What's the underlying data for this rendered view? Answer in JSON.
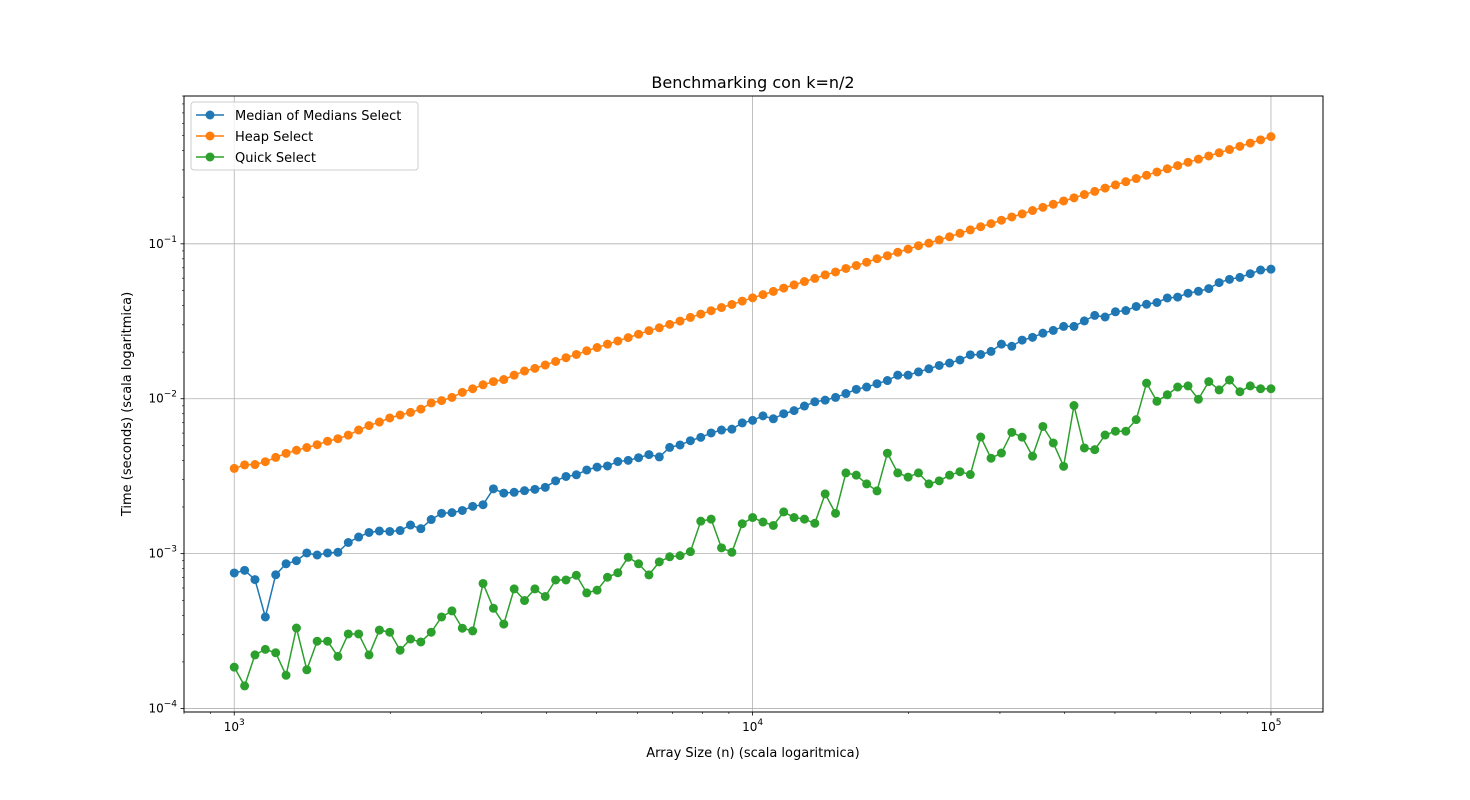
{
  "chart_data": {
    "type": "line",
    "title": "Benchmarking con k=n/2",
    "xlabel": "Array Size (n) (scala logaritmica)",
    "ylabel": "Time (seconds) (scala logaritmica)",
    "xscale": "log",
    "yscale": "log",
    "xlim": [
      800,
      126000
    ],
    "ylim": [
      9.5e-05,
      0.9
    ],
    "x_ticks": [
      {
        "value": 1000,
        "base": "10",
        "exp": "3"
      },
      {
        "value": 10000,
        "base": "10",
        "exp": "4"
      },
      {
        "value": 100000,
        "base": "10",
        "exp": "5"
      }
    ],
    "y_ticks": [
      {
        "value": 0.0001,
        "base": "10",
        "exp": "−4"
      },
      {
        "value": 0.001,
        "base": "10",
        "exp": "−3"
      },
      {
        "value": 0.01,
        "base": "10",
        "exp": "−2"
      },
      {
        "value": 0.1,
        "base": "10",
        "exp": "−1"
      }
    ],
    "grid": true,
    "legend_position": "top-left",
    "x_range": {
      "start": 1000,
      "stop": 100000,
      "count": 101,
      "spacing": "log"
    },
    "series": [
      {
        "name": "Median of Medians Select",
        "color": "#1f77b4",
        "values": [
          0.00075,
          0.00078,
          0.00068,
          0.00039,
          0.00073,
          0.00086,
          0.0009,
          0.00101,
          0.00098,
          0.00101,
          0.00102,
          0.00118,
          0.00128,
          0.00137,
          0.0014,
          0.00139,
          0.00141,
          0.00153,
          0.00145,
          0.00166,
          0.00182,
          0.00184,
          0.0019,
          0.00202,
          0.00207,
          0.00262,
          0.00246,
          0.00249,
          0.00255,
          0.0026,
          0.00268,
          0.00295,
          0.00315,
          0.00323,
          0.00347,
          0.00362,
          0.00368,
          0.00393,
          0.004,
          0.00416,
          0.00436,
          0.00421,
          0.00485,
          0.00503,
          0.00536,
          0.00563,
          0.00601,
          0.00628,
          0.00636,
          0.00698,
          0.00725,
          0.00775,
          0.00742,
          0.008,
          0.00838,
          0.00897,
          0.00956,
          0.00979,
          0.0102,
          0.0108,
          0.0115,
          0.0119,
          0.0125,
          0.0131,
          0.0142,
          0.0142,
          0.0149,
          0.0156,
          0.0164,
          0.017,
          0.0178,
          0.0192,
          0.0193,
          0.0202,
          0.0225,
          0.0218,
          0.0239,
          0.0249,
          0.0265,
          0.0276,
          0.0293,
          0.0293,
          0.0318,
          0.0345,
          0.0337,
          0.0364,
          0.0371,
          0.0394,
          0.0407,
          0.0418,
          0.0447,
          0.0453,
          0.048,
          0.0494,
          0.0514,
          0.0562,
          0.059,
          0.0607,
          0.0641,
          0.0677,
          0.0686
        ]
      },
      {
        "name": "Heap Select",
        "color": "#ff7f0e",
        "values": [
          0.00355,
          0.00374,
          0.00376,
          0.00392,
          0.00418,
          0.00444,
          0.00465,
          0.00484,
          0.00505,
          0.00532,
          0.00552,
          0.00582,
          0.00628,
          0.00671,
          0.00707,
          0.00751,
          0.00785,
          0.00816,
          0.00857,
          0.0094,
          0.00973,
          0.0102,
          0.011,
          0.0116,
          0.0123,
          0.0129,
          0.0133,
          0.0142,
          0.0151,
          0.0157,
          0.0165,
          0.0174,
          0.0184,
          0.0193,
          0.0204,
          0.0214,
          0.0225,
          0.0236,
          0.0248,
          0.0261,
          0.0275,
          0.0287,
          0.0302,
          0.0317,
          0.0335,
          0.0352,
          0.037,
          0.0388,
          0.0406,
          0.0427,
          0.0448,
          0.047,
          0.0493,
          0.0518,
          0.0543,
          0.0571,
          0.0598,
          0.063,
          0.0658,
          0.0693,
          0.0724,
          0.0761,
          0.0801,
          0.0838,
          0.0882,
          0.0925,
          0.0972,
          0.101,
          0.106,
          0.111,
          0.117,
          0.123,
          0.129,
          0.135,
          0.142,
          0.149,
          0.156,
          0.164,
          0.172,
          0.18,
          0.189,
          0.198,
          0.208,
          0.218,
          0.229,
          0.24,
          0.252,
          0.264,
          0.277,
          0.291,
          0.305,
          0.32,
          0.336,
          0.352,
          0.369,
          0.387,
          0.406,
          0.426,
          0.447,
          0.469,
          0.492
        ]
      },
      {
        "name": "Quick Select",
        "color": "#2ca02c",
        "values": [
          0.000185,
          0.00014,
          0.000222,
          0.000241,
          0.000229,
          0.000164,
          0.000331,
          0.000178,
          0.000272,
          0.000272,
          0.000217,
          0.000303,
          0.000303,
          0.000222,
          0.000321,
          0.000311,
          0.000238,
          0.000281,
          0.000269,
          0.000311,
          0.00039,
          0.000427,
          0.00033,
          0.000317,
          0.000642,
          0.000444,
          0.000351,
          0.000592,
          0.000498,
          0.000592,
          0.000529,
          0.000676,
          0.000676,
          0.000725,
          0.000558,
          0.000581,
          0.000704,
          0.000752,
          0.000947,
          0.00086,
          0.000729,
          0.000885,
          0.000954,
          0.000971,
          0.00103,
          0.00162,
          0.00167,
          0.00109,
          0.00102,
          0.00156,
          0.00171,
          0.0016,
          0.00152,
          0.00186,
          0.00171,
          0.00167,
          0.00157,
          0.00243,
          0.00182,
          0.00332,
          0.00321,
          0.00282,
          0.00254,
          0.00445,
          0.00332,
          0.00312,
          0.00332,
          0.00282,
          0.00295,
          0.00321,
          0.00338,
          0.00324,
          0.00566,
          0.00413,
          0.00446,
          0.00607,
          0.00565,
          0.00426,
          0.00662,
          0.00518,
          0.00366,
          0.00904,
          0.00481,
          0.00469,
          0.00583,
          0.00617,
          0.00617,
          0.00733,
          0.0126,
          0.00963,
          0.0106,
          0.0119,
          0.0121,
          0.00992,
          0.0129,
          0.0114,
          0.0132,
          0.0111,
          0.0121,
          0.0116,
          0.0116
        ]
      }
    ]
  }
}
